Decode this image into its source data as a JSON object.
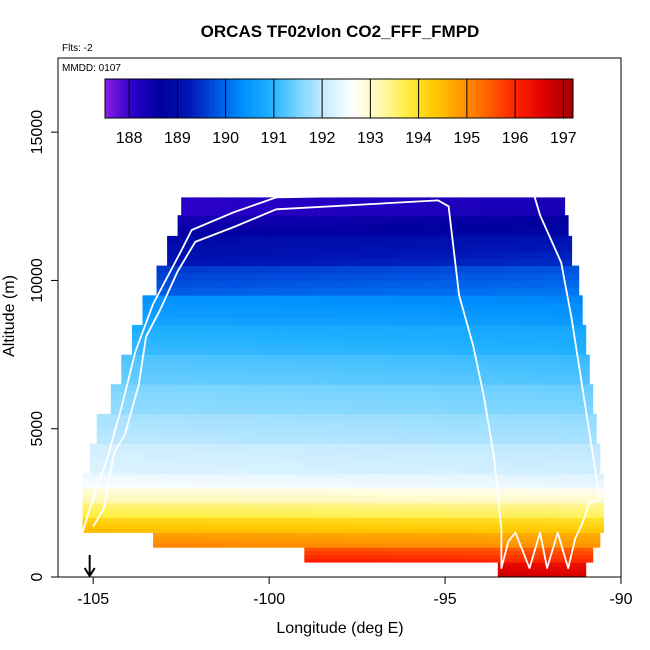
{
  "chart_data": {
    "type": "heatmap",
    "title": "ORCAS TF02vlon CO2_FFF_FMPD",
    "subtitle_flts": "Flts: -2",
    "subtitle_mmdd": "MMDD: 0107",
    "xlabel": "Longitude (deg E)",
    "ylabel": "Altitude (m)",
    "xlim": [
      -106,
      -90
    ],
    "ylim": [
      0,
      17500
    ],
    "x_ticks": [
      -105,
      -100,
      -95,
      -90
    ],
    "x_tick_labels": [
      "-105",
      "-100",
      "-95",
      "-90"
    ],
    "y_ticks": [
      0,
      5000,
      10000,
      15000
    ],
    "y_tick_labels": [
      "0",
      "5000",
      "10000",
      "15000"
    ],
    "colorbar": {
      "min": 187.5,
      "max": 197.2,
      "ticks": [
        188,
        189,
        190,
        191,
        192,
        193,
        194,
        195,
        196,
        197
      ],
      "tick_labels": [
        "188",
        "189",
        "190",
        "191",
        "192",
        "193",
        "194",
        "195",
        "196",
        "197"
      ],
      "colors": [
        "#8a1ee6",
        "#2a00c8",
        "#00009e",
        "#0014b4",
        "#0050e0",
        "#0090ff",
        "#20b0ff",
        "#78d4ff",
        "#c8ecff",
        "#ffffff",
        "#fff8b0",
        "#ffee40",
        "#ffc800",
        "#ff9600",
        "#ff5a00",
        "#ff1e00",
        "#dc0000",
        "#a00000"
      ]
    },
    "arrow_longitude": -105.1,
    "field": {
      "description": "CO2_FFF_FMPD curtain along longitude",
      "layers": [
        {
          "alt": [
            0,
            500
          ],
          "left": -93.5,
          "right": -91.0,
          "value": 196.7
        },
        {
          "alt": [
            500,
            1000
          ],
          "left": -99.0,
          "right": -90.8,
          "value": 196.0
        },
        {
          "alt": [
            1000,
            1500
          ],
          "left": -103.3,
          "right": -90.6,
          "value": 195.0
        },
        {
          "alt": [
            1500,
            2000
          ],
          "left": -105.3,
          "right": -90.5,
          "value": 194.4
        },
        {
          "alt": [
            2000,
            2500
          ],
          "left": -105.3,
          "right": -90.5,
          "value": 193.7
        },
        {
          "alt": [
            2500,
            3000
          ],
          "left": -105.3,
          "right": -90.5,
          "value": 193.1
        },
        {
          "alt": [
            3000,
            3500
          ],
          "left": -105.3,
          "right": -90.5,
          "value": 192.5
        },
        {
          "alt": [
            3500,
            4500
          ],
          "left": -105.1,
          "right": -90.6,
          "value": 192.2
        },
        {
          "alt": [
            4500,
            5500
          ],
          "left": -104.9,
          "right": -90.7,
          "value": 191.9
        },
        {
          "alt": [
            5500,
            6500
          ],
          "left": -104.5,
          "right": -90.8,
          "value": 191.6
        },
        {
          "alt": [
            6500,
            7500
          ],
          "left": -104.2,
          "right": -90.9,
          "value": 191.3
        },
        {
          "alt": [
            7500,
            8500
          ],
          "left": -103.9,
          "right": -91.0,
          "value": 191.0
        },
        {
          "alt": [
            8500,
            9500
          ],
          "left": -103.6,
          "right": -91.1,
          "value": 190.6
        },
        {
          "alt": [
            9500,
            10500
          ],
          "left": -103.2,
          "right": -91.2,
          "value": 190.0
        },
        {
          "alt": [
            10500,
            11500
          ],
          "left": -102.9,
          "right": -91.4,
          "value": 189.3
        },
        {
          "alt": [
            11500,
            12200
          ],
          "left": -102.6,
          "right": -91.5,
          "value": 188.7
        },
        {
          "alt": [
            12200,
            12800
          ],
          "left": -102.5,
          "right": -91.6,
          "value": 188.2
        }
      ]
    },
    "flight_track": {
      "description": "flight path outline (white)",
      "lon": [
        -105.0,
        -104.7,
        -104.4,
        -104.1,
        -103.7,
        -103.5,
        -103.1,
        -102.6,
        -102.1,
        -101.0,
        -99.8,
        -95.2,
        -94.9,
        -94.6,
        -94.2,
        -93.9,
        -93.6,
        -93.4,
        -93.4,
        -93.2,
        -93.0,
        -92.6,
        -92.3,
        -92.1,
        -91.8,
        -91.5,
        -91.3,
        -91.1,
        -90.9,
        -90.6,
        -91.4,
        -91.7,
        -92.3,
        -92.5,
        -93.2,
        -94.8,
        -99.8,
        -101.0,
        -102.2,
        -102.5,
        -103.3,
        -103.8,
        -104.2,
        -104.6,
        -105.1,
        -105.3
      ],
      "alt": [
        1700,
        2300,
        4200,
        4800,
        6500,
        8100,
        9000,
        10300,
        11300,
        11800,
        12400,
        12700,
        12500,
        9500,
        7800,
        6100,
        4000,
        1600,
        300,
        1200,
        1500,
        300,
        1500,
        300,
        1500,
        300,
        1300,
        1800,
        2500,
        2600,
        8700,
        10600,
        12200,
        13000,
        13100,
        12900,
        12800,
        12300,
        11700,
        11000,
        9200,
        7600,
        5700,
        4000,
        2300,
        1500
      ]
    }
  }
}
